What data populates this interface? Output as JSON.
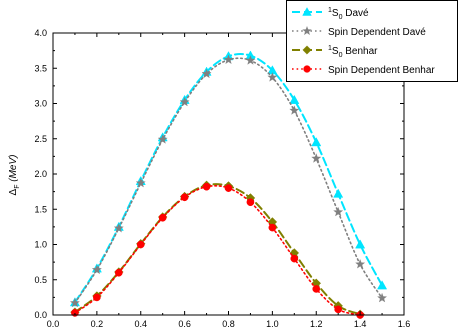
{
  "chart_data": {
    "type": "line",
    "title": "",
    "xlabel": "",
    "ylabel": {
      "prefix": "Δ",
      "subscript": "F",
      "unit": "(MeV)"
    },
    "xlim": [
      0.0,
      1.6
    ],
    "ylim": [
      0.0,
      4.0
    ],
    "xticks": [
      "0.0",
      "0.2",
      "0.4",
      "0.6",
      "0.8",
      "1.0",
      "1.2",
      "1.4",
      "1.6"
    ],
    "yticks": [
      "0.0",
      "0.5",
      "1.0",
      "1.5",
      "2.0",
      "2.5",
      "3.0",
      "3.5",
      "4.0"
    ],
    "grid": false,
    "legend_position": "top-right",
    "series": [
      {
        "name": "¹S₀ Davé",
        "legend": {
          "sup": "1",
          "base": "S",
          "sub": "0",
          "rest": " Davé"
        },
        "color": "#00e5ff",
        "line_style": "dashed",
        "marker": "triangle",
        "x": [
          0.1,
          0.2,
          0.3,
          0.4,
          0.5,
          0.6,
          0.7,
          0.8,
          0.9,
          1.0,
          1.1,
          1.2,
          1.3,
          1.4,
          1.5
        ],
        "y": [
          0.18,
          0.66,
          1.25,
          1.9,
          2.52,
          3.05,
          3.45,
          3.67,
          3.68,
          3.47,
          3.05,
          2.45,
          1.72,
          1.0,
          0.42
        ]
      },
      {
        "name": "Spin Dependent Davé",
        "legend": {
          "sup": "",
          "base": "",
          "sub": "",
          "rest": "Spin Dependent Davé"
        },
        "color": "#808080",
        "line_style": "dotted",
        "marker": "star",
        "x": [
          0.1,
          0.2,
          0.3,
          0.4,
          0.5,
          0.6,
          0.7,
          0.8,
          0.9,
          1.0,
          1.1,
          1.2,
          1.3,
          1.4,
          1.5
        ],
        "y": [
          0.17,
          0.64,
          1.23,
          1.87,
          2.49,
          3.02,
          3.42,
          3.62,
          3.61,
          3.37,
          2.9,
          2.22,
          1.46,
          0.72,
          0.24
        ]
      },
      {
        "name": "¹S₀ Benhar",
        "legend": {
          "sup": "1",
          "base": "S",
          "sub": "0",
          "rest": " Benhar"
        },
        "color": "#808000",
        "line_style": "dashed",
        "marker": "diamond",
        "x": [
          0.1,
          0.2,
          0.3,
          0.4,
          0.5,
          0.6,
          0.7,
          0.8,
          0.9,
          1.0,
          1.1,
          1.2,
          1.3,
          1.4
        ],
        "y": [
          0.04,
          0.27,
          0.61,
          1.01,
          1.39,
          1.68,
          1.84,
          1.83,
          1.66,
          1.32,
          0.88,
          0.45,
          0.13,
          0.01
        ]
      },
      {
        "name": "Spin Dependent Benhar",
        "legend": {
          "sup": "",
          "base": "",
          "sub": "",
          "rest": "Spin Dependent Benhar"
        },
        "color": "#ff0000",
        "line_style": "dotted",
        "marker": "circle",
        "x": [
          0.1,
          0.2,
          0.3,
          0.4,
          0.5,
          0.6,
          0.7,
          0.8,
          0.9,
          1.0,
          1.1,
          1.2,
          1.3,
          1.4
        ],
        "y": [
          0.03,
          0.25,
          0.6,
          1.0,
          1.38,
          1.67,
          1.82,
          1.8,
          1.6,
          1.24,
          0.8,
          0.37,
          0.08,
          0.0
        ]
      }
    ]
  }
}
